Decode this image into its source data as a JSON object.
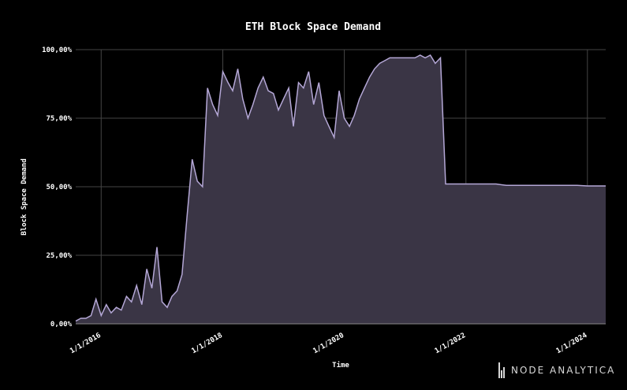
{
  "chart_data": {
    "type": "area",
    "title": "ETH Block Space Demand",
    "xlabel": "Time",
    "ylabel": "Block Space Demand",
    "ylim": [
      0,
      100
    ],
    "xlim": [
      "2015-08-01",
      "2024-04-20"
    ],
    "y_ticks": [
      "0,00%",
      "25,00%",
      "50,00%",
      "75,00%",
      "100,00%"
    ],
    "y_tick_values": [
      0,
      25,
      50,
      75,
      100
    ],
    "x_ticks": [
      "1/1/2016",
      "1/1/2018",
      "1/1/2020",
      "1/1/2022",
      "1/1/2024"
    ],
    "x_tick_values": [
      "2016-01-01",
      "2018-01-01",
      "2020-01-01",
      "2022-01-01",
      "2024-01-01"
    ],
    "grid": true,
    "colors": {
      "line": "#b4a7d6",
      "fill": "#3a3545",
      "grid": "#444444",
      "background": "#000000"
    },
    "series": [
      {
        "x": [
          "2015-08-01",
          "2015-09-01",
          "2015-10-01",
          "2015-11-01",
          "2015-12-01",
          "2016-01-01",
          "2016-02-01",
          "2016-03-01",
          "2016-04-01",
          "2016-05-01",
          "2016-06-01",
          "2016-07-01",
          "2016-08-01",
          "2016-09-01",
          "2016-10-01",
          "2016-11-01",
          "2016-12-01",
          "2017-01-01",
          "2017-02-01",
          "2017-03-01",
          "2017-04-01",
          "2017-05-01",
          "2017-06-01",
          "2017-07-01",
          "2017-08-01",
          "2017-09-01",
          "2017-10-01",
          "2017-11-01",
          "2017-12-01",
          "2018-01-01",
          "2018-02-01",
          "2018-03-01",
          "2018-04-01",
          "2018-05-01",
          "2018-06-01",
          "2018-07-01",
          "2018-08-01",
          "2018-09-01",
          "2018-10-01",
          "2018-11-01",
          "2018-12-01",
          "2019-01-01",
          "2019-02-01",
          "2019-03-01",
          "2019-04-01",
          "2019-05-01",
          "2019-06-01",
          "2019-07-01",
          "2019-08-01",
          "2019-09-01",
          "2019-10-01",
          "2019-11-01",
          "2019-12-01",
          "2020-01-01",
          "2020-02-01",
          "2020-03-01",
          "2020-04-01",
          "2020-05-01",
          "2020-06-01",
          "2020-07-01",
          "2020-08-01",
          "2020-09-01",
          "2020-10-01",
          "2020-11-01",
          "2020-12-01",
          "2021-01-01",
          "2021-02-01",
          "2021-03-01",
          "2021-04-01",
          "2021-05-01",
          "2021-06-01",
          "2021-07-01",
          "2021-08-01",
          "2021-09-01",
          "2021-10-01",
          "2021-11-01",
          "2021-12-01",
          "2022-01-01",
          "2022-03-01",
          "2022-05-01",
          "2022-07-01",
          "2022-09-01",
          "2022-11-01",
          "2023-01-01",
          "2023-03-01",
          "2023-05-01",
          "2023-07-01",
          "2023-09-01",
          "2023-11-01",
          "2024-01-01",
          "2024-03-01",
          "2024-04-20"
        ],
        "values": [
          1,
          2,
          2,
          3,
          9,
          3,
          7,
          4,
          6,
          5,
          10,
          8,
          14,
          7,
          20,
          13,
          28,
          8,
          6,
          10,
          12,
          18,
          40,
          60,
          52,
          50,
          86,
          80,
          76,
          92,
          88,
          85,
          93,
          82,
          75,
          80,
          86,
          90,
          85,
          84,
          78,
          82,
          86,
          72,
          88,
          86,
          92,
          80,
          88,
          76,
          72,
          68,
          85,
          75,
          72,
          76,
          82,
          86,
          90,
          93,
          95,
          96,
          97,
          97,
          97,
          97,
          97,
          97,
          98,
          97,
          98,
          95,
          97,
          51,
          51,
          51,
          51,
          51,
          51,
          51,
          51,
          50.5,
          50.5,
          50.5,
          50.5,
          50.5,
          50.5,
          50.5,
          50.5,
          50.3,
          50.3,
          50.3
        ]
      }
    ]
  },
  "brand": {
    "name": "NODE ANALYTICA"
  }
}
